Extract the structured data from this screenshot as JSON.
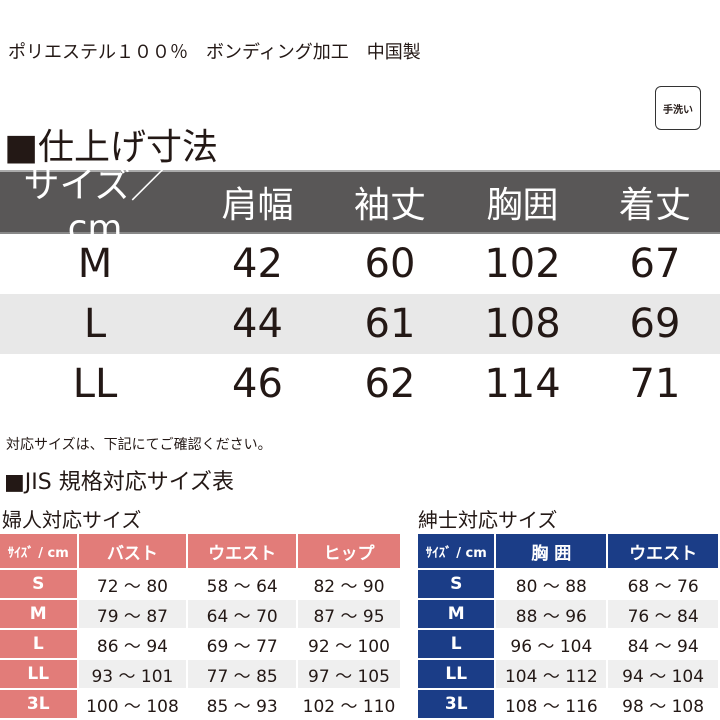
{
  "material": "ポリエステル１００％　ボンディング加工　中国製",
  "care_label": "手洗い",
  "finished": {
    "title": "■仕上げ寸法",
    "headers": [
      "サイズ／cm",
      "肩幅",
      "袖丈",
      "胸囲",
      "着丈"
    ],
    "rows": [
      [
        "M",
        "42",
        "60",
        "102",
        "67"
      ],
      [
        "L",
        "44",
        "61",
        "108",
        "69"
      ],
      [
        "LL",
        "46",
        "62",
        "114",
        "71"
      ]
    ]
  },
  "note": "対応サイズは、下記にてご確認ください。",
  "jis_title": "■JIS 規格対応サイズ表",
  "women": {
    "title": "婦人対応サイズ",
    "headers": [
      "ｻｲｽﾞ / cm",
      "バスト",
      "ウエスト",
      "ヒップ"
    ],
    "rows": [
      [
        "S",
        "72 ～ 80",
        "58 ～ 64",
        "82 ～ 90"
      ],
      [
        "M",
        "79 ～ 87",
        "64 ～ 70",
        "87 ～ 95"
      ],
      [
        "L",
        "86 ～ 94",
        "69 ～ 77",
        "92 ～ 100"
      ],
      [
        "LL",
        "93 ～ 101",
        "77 ～ 85",
        "97 ～ 105"
      ],
      [
        "3L",
        "100 ～ 108",
        "85 ～ 93",
        "102 ～ 110"
      ]
    ]
  },
  "men": {
    "title": "紳士対応サイズ",
    "headers": [
      "ｻｲｽﾞ / cm",
      "胸 囲",
      "ウエスト"
    ],
    "rows": [
      [
        "S",
        "80 ～ 88",
        "68 ～ 76"
      ],
      [
        "M",
        "88 ～ 96",
        "76 ～ 84"
      ],
      [
        "L",
        "96 ～ 104",
        "84 ～ 94"
      ],
      [
        "LL",
        "104 ～ 112",
        "94 ～ 104"
      ],
      [
        "3L",
        "108 ～ 116",
        "98 ～ 108"
      ]
    ]
  },
  "colors": {
    "women": "#e27c79",
    "men": "#1b3d87",
    "header": "#595757"
  }
}
